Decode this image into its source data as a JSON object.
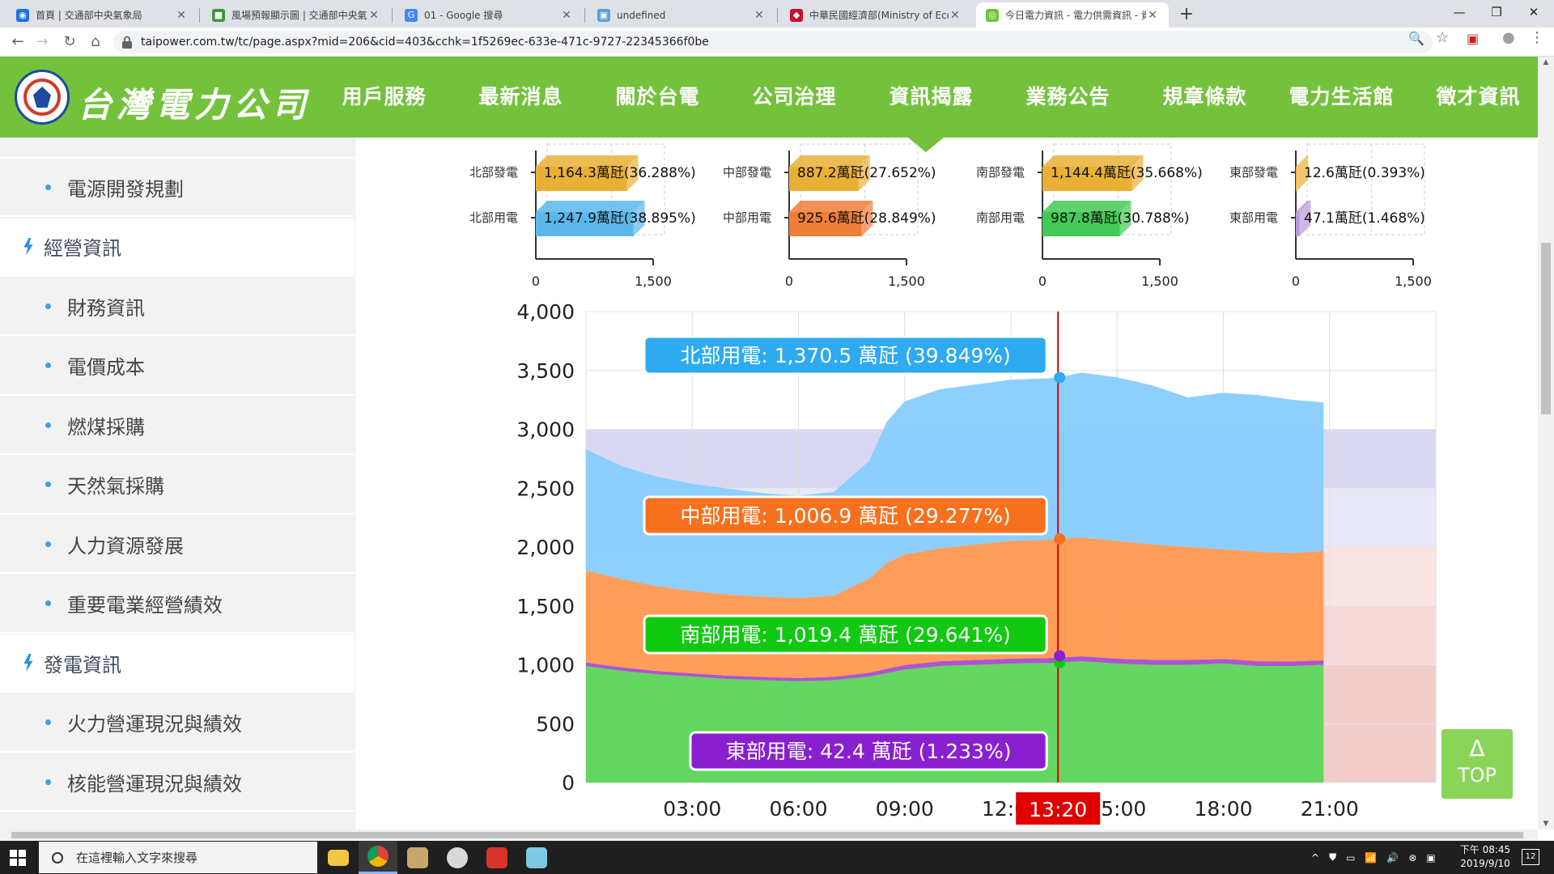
{
  "browser": {
    "tabs": [
      {
        "title": "首頁 | 交通部中央氣象局",
        "color": "#1a73e8",
        "glyph": "◉"
      },
      {
        "title": "風場預報顯示圖 | 交通部中央氣象",
        "color": "#3a9a3a",
        "glyph": "■"
      },
      {
        "title": "01 - Google 搜尋",
        "color": "#4285f4",
        "glyph": "G"
      },
      {
        "title": "undefined",
        "color": "#5aa0d8",
        "glyph": "▣"
      },
      {
        "title": "中華民國經濟部(Ministry of Eco",
        "color": "#c8102e",
        "glyph": "◆"
      },
      {
        "title": "今日電力資訊 - 電力供需資訊 - 資",
        "color": "#74c23c",
        "glyph": "◎"
      }
    ],
    "new_tab": "+",
    "window_controls": {
      "minimize": "—",
      "maximize": "❐",
      "close": "✕"
    },
    "url": "taipower.com.tw/tc/page.aspx?mid=206&cid=403&cchk=1f5269ec-633e-471c-9727-22345366f0be",
    "nav": {
      "back": "←",
      "forward": "→",
      "reload": "↻",
      "home": "⌂"
    },
    "omni_icons": {
      "zoom": "🔍",
      "star": "☆",
      "ext": "▣",
      "profile": "●",
      "menu": "⋮"
    }
  },
  "site": {
    "logo_text": "台灣電力公司",
    "nav": [
      "用戶服務",
      "最新消息",
      "關於台電",
      "公司治理",
      "資訊揭露",
      "業務公告",
      "規章條款",
      "電力生活館",
      "徵才資訊"
    ],
    "active_nav_index": 4
  },
  "sidebar": {
    "items": [
      {
        "label": "電源開發規劃",
        "level": 2
      },
      {
        "label": "經營資訊",
        "level": 1
      },
      {
        "label": "財務資訊",
        "level": 2
      },
      {
        "label": "電價成本",
        "level": 2
      },
      {
        "label": "燃煤採購",
        "level": 2
      },
      {
        "label": "天然氣採購",
        "level": 2
      },
      {
        "label": "人力資源發展",
        "level": 2
      },
      {
        "label": "重要電業經營績效",
        "level": 2
      },
      {
        "label": "發電資訊",
        "level": 1
      },
      {
        "label": "火力營運現況與績效",
        "level": 2
      },
      {
        "label": "核能營運現況與績效",
        "level": 2
      }
    ]
  },
  "chart_data": [
    {
      "type": "bar",
      "orientation": "horizontal",
      "regions": [
        {
          "region": "北部",
          "gen_label": "北部發電",
          "use_label": "北部用電",
          "gen_value": 1164.3,
          "gen_text": "1,164.3萬瓩(36.288%)",
          "use_value": 1247.9,
          "use_text": "1,247.9萬瓩(38.895%)",
          "gen_color": "#e9b036",
          "use_color": "#5bb7ea"
        },
        {
          "region": "中部",
          "gen_label": "中部發電",
          "use_label": "中部用電",
          "gen_value": 887.2,
          "gen_text": "887.2萬瓩(27.652%)",
          "use_value": 925.6,
          "use_text": "925.6萬瓩(28.849%)",
          "gen_color": "#e9b036",
          "use_color": "#ef7e39"
        },
        {
          "region": "南部",
          "gen_label": "南部發電",
          "use_label": "南部用電",
          "gen_value": 1144.4,
          "gen_text": "1,144.4萬瓩(35.668%)",
          "use_value": 987.8,
          "use_text": "987.8萬瓩(30.788%)",
          "gen_color": "#e9b036",
          "use_color": "#43c955"
        },
        {
          "region": "東部",
          "gen_label": "東部發電",
          "use_label": "東部用電",
          "gen_value": 12.6,
          "gen_text": "12.6萬瓩(0.393%)",
          "use_value": 47.1,
          "use_text": "47.1萬瓩(1.468%)",
          "gen_color": "#e9b036",
          "use_color": "#b99ad8"
        }
      ],
      "xlim": [
        0,
        1500
      ],
      "ticks": [
        "0",
        "1,500"
      ]
    },
    {
      "type": "area",
      "stacked": true,
      "ylim": [
        0,
        4000
      ],
      "y_ticks": [
        "0",
        "500",
        "1,000",
        "1,500",
        "2,000",
        "2,500",
        "3,000",
        "3,500",
        "4,000"
      ],
      "x_range_hours": [
        0,
        24
      ],
      "x_ticks": [
        {
          "hour": 3,
          "label": "03:00"
        },
        {
          "hour": 6,
          "label": "06:00"
        },
        {
          "hour": 9,
          "label": "09:00"
        },
        {
          "hour": 12,
          "label": "12:00"
        },
        {
          "hour": 15,
          "label": "15:00"
        },
        {
          "hour": 18,
          "label": "18:00"
        },
        {
          "hour": 21,
          "label": "21:00"
        }
      ],
      "bands": [
        {
          "from": 2500,
          "to": 3000,
          "color": "#d9d8f3"
        },
        {
          "from": 2000,
          "to": 2500,
          "color": "#e9e8f8"
        },
        {
          "from": 1500,
          "to": 2000,
          "color": "#f9e4e4"
        },
        {
          "from": 1000,
          "to": 1500,
          "color": "#f6d8d8"
        },
        {
          "from": 0,
          "to": 1000,
          "color": "#f3cccc"
        }
      ],
      "times": [
        0,
        1,
        2,
        3,
        4,
        5,
        6,
        7,
        8,
        8.5,
        9,
        10,
        11,
        12,
        13,
        13.33,
        14,
        15,
        16,
        17,
        18,
        19,
        20,
        20.83
      ],
      "series": [
        {
          "key": "south",
          "color": "#5cd65c",
          "label": "南部用電: 1,019.4 萬瓩 (29.641%)",
          "values": [
            990,
            950,
            920,
            900,
            880,
            870,
            860,
            870,
            900,
            930,
            960,
            990,
            1000,
            1010,
            1015,
            1019.4,
            1030,
            1010,
            1000,
            1000,
            1010,
            990,
            990,
            1000
          ]
        },
        {
          "key": "east",
          "color": "#a64fd0",
          "label": "東部用電: 42.4 萬瓩 (1.233%)",
          "values": [
            30,
            29,
            28,
            27,
            27,
            27,
            27,
            28,
            32,
            36,
            38,
            40,
            41,
            42,
            42,
            42.4,
            42,
            42,
            42,
            41,
            40,
            40,
            39,
            38
          ]
        },
        {
          "key": "central",
          "color": "#ff9a52",
          "label": "中部用電: 1,006.9 萬瓩 (29.277%)",
          "values": [
            780,
            750,
            720,
            700,
            690,
            680,
            680,
            690,
            800,
            900,
            940,
            960,
            980,
            1000,
            1005,
            1006.9,
            1010,
            1000,
            980,
            960,
            930,
            930,
            920,
            930
          ]
        },
        {
          "key": "north",
          "color": "#87ceff",
          "label": "北部用電: 1,370.5 萬瓩 (39.849%)",
          "values": [
            1030,
            960,
            930,
            910,
            900,
            880,
            870,
            880,
            1000,
            1200,
            1300,
            1350,
            1360,
            1370,
            1370,
            1370.5,
            1400,
            1390,
            1350,
            1270,
            1330,
            1330,
            1300,
            1260
          ]
        }
      ],
      "cursor": {
        "hour": 13.33,
        "label": "13:20",
        "color": "#e00000"
      }
    }
  ],
  "back_to_top": {
    "arrow": "Δ",
    "label": "TOP"
  },
  "taskbar": {
    "search_placeholder": "在這裡輸入文字來搜尋",
    "clock_time": "下午 08:45",
    "clock_date": "2019/9/10",
    "tray": [
      "^",
      "⛊",
      "▭",
      "📶",
      "🔊",
      "⊗",
      "▣"
    ],
    "notification_count": "12"
  }
}
